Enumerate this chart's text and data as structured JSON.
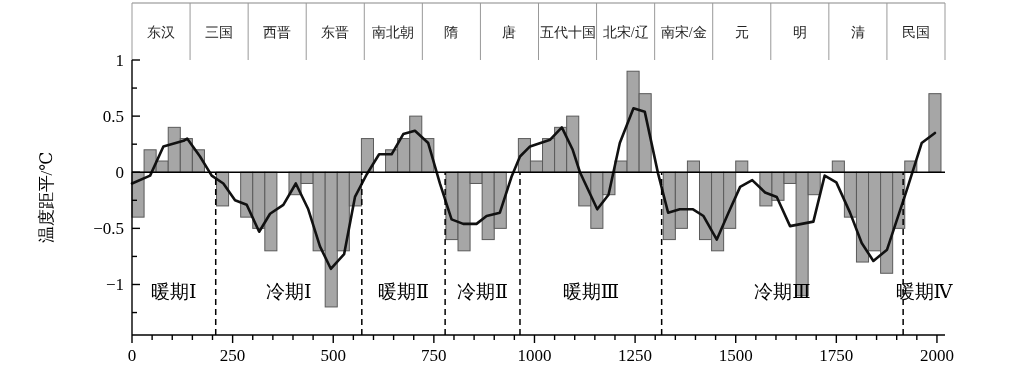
{
  "chart_data": [
    {
      "type": "other",
      "categories": [
        "东汉",
        "三国",
        "西晋",
        "东晋",
        "南北朝",
        "隋",
        "唐",
        "五代十国",
        "北宋/辽",
        "南宋/金",
        "元",
        "明",
        "清",
        "民国"
      ]
    },
    {
      "type": "bar",
      "ylabel": "温度距平/℃",
      "x": [
        15,
        45,
        75,
        105,
        135,
        165,
        195,
        225,
        255,
        285,
        315,
        345,
        375,
        405,
        435,
        465,
        495,
        525,
        555,
        585,
        615,
        645,
        675,
        705,
        735,
        765,
        795,
        825,
        855,
        885,
        915,
        945,
        975,
        1005,
        1035,
        1065,
        1095,
        1125,
        1155,
        1185,
        1215,
        1245,
        1275,
        1305,
        1335,
        1365,
        1395,
        1425,
        1455,
        1485,
        1515,
        1545,
        1575,
        1605,
        1635,
        1665,
        1695,
        1725,
        1755,
        1785,
        1815,
        1845,
        1875,
        1905,
        1935,
        1965,
        1995
      ],
      "series": [
        {
          "color": "#a6a6a6",
          "values": [
            -0.4,
            0.2,
            0.1,
            0.4,
            0.3,
            0.2,
            0,
            -0.3,
            0,
            -0.4,
            -0.5,
            -0.7,
            0,
            -0.2,
            -0.1,
            -0.7,
            -1.2,
            -0.7,
            -0.3,
            0.3,
            0,
            0.2,
            0.3,
            0.5,
            0.3,
            0,
            -0.6,
            -0.7,
            -0.1,
            -0.6,
            -0.5,
            0,
            0.3,
            0.1,
            0.3,
            0.4,
            0.5,
            -0.3,
            -0.5,
            -0.2,
            0.1,
            0.9,
            0.7,
            0,
            -0.6,
            -0.5,
            0.1,
            -0.6,
            -0.7,
            -0.5,
            0.1,
            0,
            -0.3,
            -0.25,
            -0.1,
            -1.1,
            -0.2,
            0,
            0.1,
            -0.4,
            -0.8,
            -0.7,
            -0.9,
            -0.5,
            0.1,
            0,
            0.7
          ]
        },
        {
          "type": "line",
          "color": "#111111",
          "x": [
            0,
            45,
            78,
            128,
            137,
            169,
            198,
            227,
            256,
            285,
            316,
            343,
            376,
            407,
            438,
            467,
            494,
            527,
            554,
            583,
            614,
            645,
            674,
            703,
            736,
            765,
            794,
            823,
            856,
            881,
            914,
            943,
            964,
            989,
            1039,
            1068,
            1095,
            1113,
            1156,
            1184,
            1212,
            1246,
            1274,
            1307,
            1332,
            1361,
            1394,
            1420,
            1453,
            1482,
            1511,
            1541,
            1573,
            1602,
            1635,
            1693,
            1721,
            1750,
            1784,
            1813,
            1842,
            1876,
            1925,
            1962,
            1995
          ],
          "values": [
            -0.1,
            -0.03,
            0.23,
            0.28,
            0.3,
            0.14,
            -0.03,
            -0.1,
            -0.25,
            -0.29,
            -0.53,
            -0.37,
            -0.29,
            -0.1,
            -0.33,
            -0.66,
            -0.86,
            -0.73,
            -0.22,
            -0.02,
            0.16,
            0.16,
            0.34,
            0.37,
            0.26,
            -0.1,
            -0.42,
            -0.46,
            -0.46,
            -0.39,
            -0.36,
            -0.04,
            0.14,
            0.23,
            0.29,
            0.4,
            0.2,
            0,
            -0.33,
            -0.2,
            0.26,
            0.57,
            0.54,
            -0.01,
            -0.36,
            -0.33,
            -0.33,
            -0.39,
            -0.6,
            -0.36,
            -0.13,
            -0.07,
            -0.18,
            -0.22,
            -0.48,
            -0.44,
            -0.03,
            -0.09,
            -0.36,
            -0.63,
            -0.79,
            -0.69,
            -0.16,
            0.26,
            0.35
          ]
        }
      ],
      "xlim": [
        0,
        2020
      ],
      "xticks": [
        0,
        {
          "value": 50,
          "label": null
        },
        {
          "value": 100,
          "label": null
        },
        {
          "value": 150,
          "label": null
        },
        {
          "value": 200,
          "label": null
        },
        250,
        {
          "value": 300,
          "label": null
        },
        {
          "value": 350,
          "label": null
        },
        {
          "value": 400,
          "label": null
        },
        {
          "value": 450,
          "label": null
        },
        500,
        {
          "value": 550,
          "label": null
        },
        {
          "value": 600,
          "label": null
        },
        {
          "value": 650,
          "label": null
        },
        {
          "value": 700,
          "label": null
        },
        750,
        {
          "value": 800,
          "label": null
        },
        {
          "value": 850,
          "label": null
        },
        {
          "value": 900,
          "label": null
        },
        {
          "value": 950,
          "label": null
        },
        1000,
        {
          "value": 1050,
          "label": null
        },
        {
          "value": 1100,
          "label": null
        },
        {
          "value": 1150,
          "label": null
        },
        {
          "value": 1200,
          "label": null
        },
        1250,
        {
          "value": 1300,
          "label": null
        },
        {
          "value": 1350,
          "label": null
        },
        {
          "value": 1400,
          "label": null
        },
        {
          "value": 1450,
          "label": null
        },
        1500,
        {
          "value": 1550,
          "label": null
        },
        {
          "value": 1600,
          "label": null
        },
        {
          "value": 1650,
          "label": null
        },
        {
          "value": 1700,
          "label": null
        },
        1750,
        {
          "value": 1800,
          "label": null
        },
        {
          "value": 1850,
          "label": null
        },
        {
          "value": 1900,
          "label": null
        },
        {
          "value": 1950,
          "label": null
        },
        2000
      ],
      "ylim": [
        -1.45,
        1
      ],
      "yticks": [
        1,
        {
          "value": 0.75,
          "label": null
        },
        0.5,
        {
          "value": 0.25,
          "label": null
        },
        0,
        {
          "value": -0.25,
          "label": null
        },
        {
          "value": -0.5,
          "label": "−0.5"
        },
        {
          "value": -0.75,
          "label": null
        },
        {
          "value": -1,
          "label": "−1"
        },
        {
          "value": -1.25,
          "label": null
        }
      ],
      "ref_lines": [
        {
          "axis": "y",
          "value": 0,
          "line_style": "solid",
          "color": "#000000"
        },
        {
          "axis": "x",
          "value": 208,
          "line_style": "dashed",
          "color": "#000000"
        },
        {
          "axis": "x",
          "value": 571,
          "line_style": "dashed",
          "color": "#000000"
        },
        {
          "axis": "x",
          "value": 778,
          "line_style": "dashed",
          "color": "#000000"
        },
        {
          "axis": "x",
          "value": 964,
          "line_style": "dashed",
          "color": "#000000"
        },
        {
          "axis": "x",
          "value": 1316,
          "line_style": "dashed",
          "color": "#000000"
        },
        {
          "axis": "x",
          "value": 1916,
          "line_style": "dashed",
          "color": "#000000"
        }
      ],
      "annotations": [
        "暖期Ⅰ",
        "冷期Ⅰ",
        "暖期Ⅱ",
        "冷期Ⅱ",
        "暖期Ⅲ",
        "冷期Ⅲ",
        "暖期Ⅳ"
      ]
    }
  ]
}
